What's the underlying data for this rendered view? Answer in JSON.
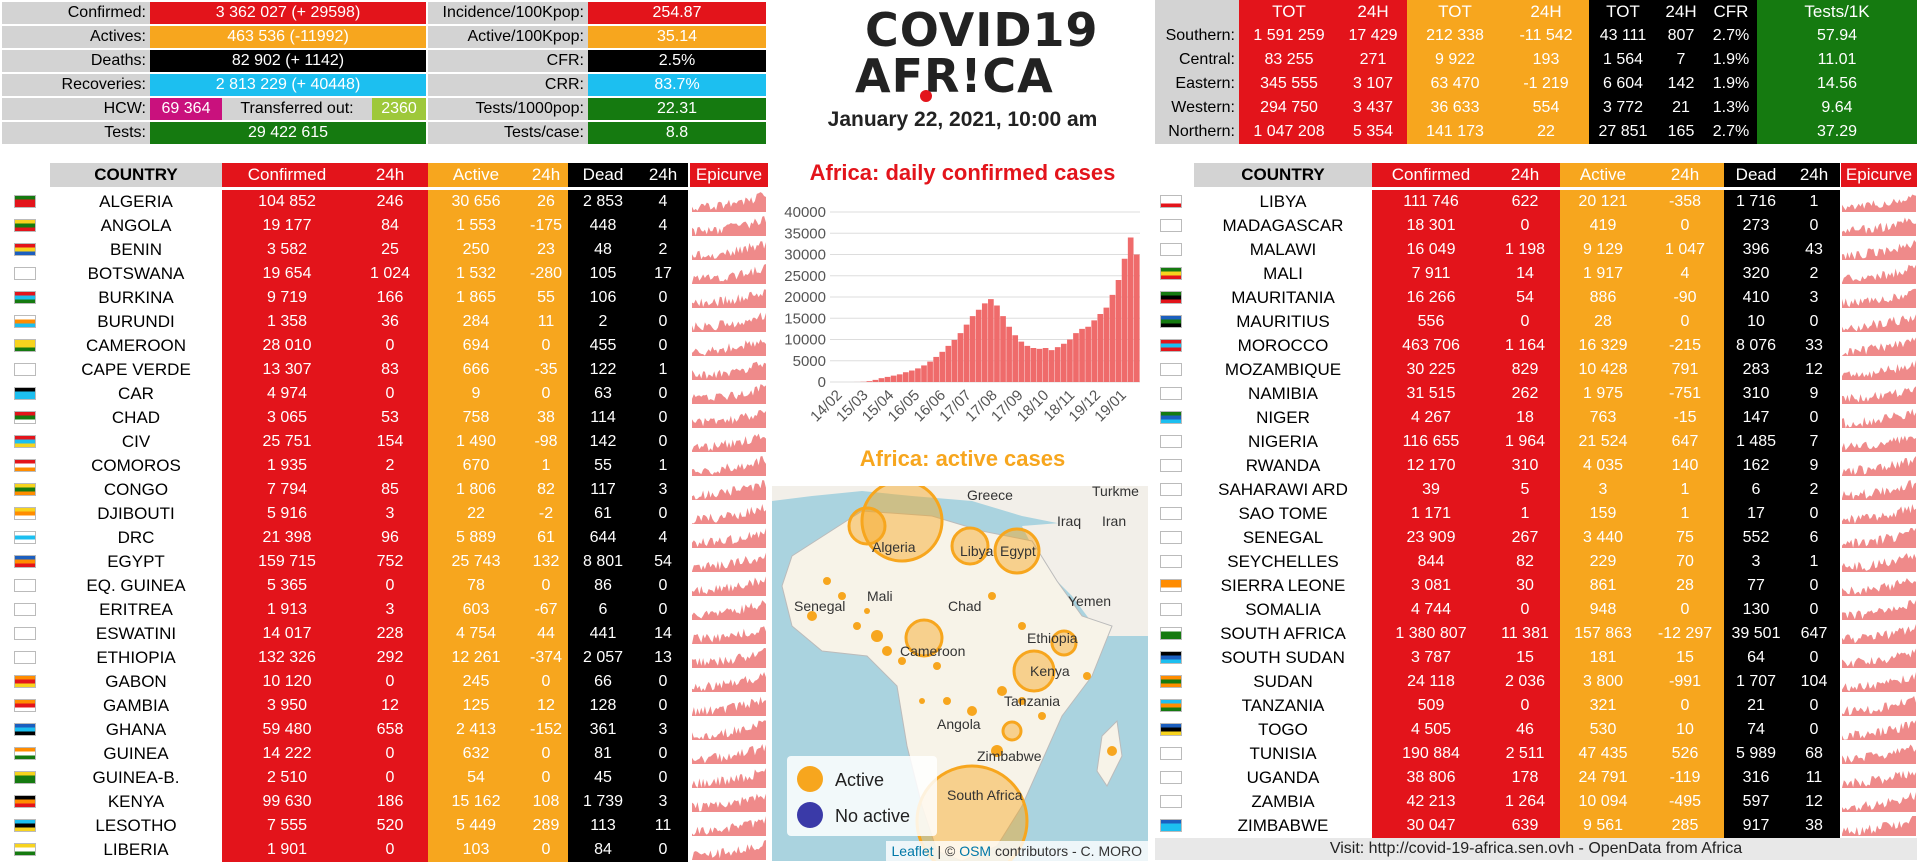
{
  "colors": {
    "confirmed": "#e3141b",
    "active": "#f7a61e",
    "dead": "#000000",
    "recovered": "#1cbff0",
    "tests": "#157a10",
    "hcw": "#c9117d",
    "transferred": "#9ec83a"
  },
  "summary_left": {
    "confirmed_label": "Confirmed:",
    "confirmed_value": "3 362 027 (+ 29598)",
    "actives_label": "Actives:",
    "actives_value": "463 536 (-11992)",
    "deaths_label": "Deaths:",
    "deaths_value": "82 902 (+ 1142)",
    "recoveries_label": "Recoveries:",
    "recoveries_value": "2 813 229 (+ 40448)",
    "hcw_label": "HCW:",
    "hcw_value": "69 364",
    "transferred_label": "Transferred out:",
    "transferred_value": "2360",
    "tests_label": "Tests:",
    "tests_value": "29 422 615"
  },
  "summary_mid": {
    "incidence_label": "Incidence/100Kpop:",
    "incidence_value": "254.87",
    "active_label": "Active/100Kpop:",
    "active_value": "35.14",
    "cfr_label": "CFR:",
    "cfr_value": "2.5%",
    "crr_label": "CRR:",
    "crr_value": "83.7%",
    "tests1000_label": "Tests/1000pop:",
    "tests1000_value": "22.31",
    "testscase_label": "Tests/case:",
    "testscase_value": "8.8"
  },
  "logo": {
    "line1": "COVID19",
    "line2": "AFR!CA"
  },
  "date": "January 22, 2021, 10:00 am",
  "regions": {
    "headers": [
      "TOT",
      "24H",
      "TOT",
      "24H",
      "TOT",
      "24H",
      "CFR",
      "Tests/1K"
    ],
    "rows": [
      {
        "name": "Southern:",
        "v": [
          "1 591 259",
          "17 429",
          "212 338",
          "-11 542",
          "43 111",
          "807",
          "2.7%",
          "57.94"
        ]
      },
      {
        "name": "Central:",
        "v": [
          "83 255",
          "271",
          "9 922",
          "193",
          "1 564",
          "7",
          "1.9%",
          "11.01"
        ]
      },
      {
        "name": "Eastern:",
        "v": [
          "345 555",
          "3 107",
          "63 470",
          "-1 219",
          "6 604",
          "142",
          "1.9%",
          "14.56"
        ]
      },
      {
        "name": "Western:",
        "v": [
          "294 750",
          "3 437",
          "36 633",
          "554",
          "3 772",
          "21",
          "1.3%",
          "9.64"
        ]
      },
      {
        "name": "Northern:",
        "v": [
          "1 047 208",
          "5 354",
          "141 173",
          "22",
          "27 851",
          "165",
          "2.7%",
          "37.29"
        ]
      }
    ]
  },
  "table_headers": {
    "country": "COUNTRY",
    "confirmed": "Confirmed",
    "c24": "24h",
    "active": "Active",
    "a24": "24h",
    "dead": "Dead",
    "d24": "24h",
    "epi": "Epicurve"
  },
  "left_countries": [
    {
      "name": "ALGERIA",
      "c": "104 852",
      "c24": "246",
      "a": "30 656",
      "a24": "26",
      "d": "2 853",
      "d24": "4"
    },
    {
      "name": "ANGOLA",
      "c": "19 177",
      "c24": "84",
      "a": "1 553",
      "a24": "-175",
      "d": "448",
      "d24": "4"
    },
    {
      "name": "BENIN",
      "c": "3 582",
      "c24": "25",
      "a": "250",
      "a24": "23",
      "d": "48",
      "d24": "2"
    },
    {
      "name": "BOTSWANA",
      "c": "19 654",
      "c24": "1 024",
      "a": "1 532",
      "a24": "-280",
      "d": "105",
      "d24": "17"
    },
    {
      "name": "BURKINA",
      "c": "9 719",
      "c24": "166",
      "a": "1 865",
      "a24": "55",
      "d": "106",
      "d24": "0"
    },
    {
      "name": "BURUNDI",
      "c": "1 358",
      "c24": "36",
      "a": "284",
      "a24": "11",
      "d": "2",
      "d24": "0"
    },
    {
      "name": "CAMEROON",
      "c": "28 010",
      "c24": "0",
      "a": "694",
      "a24": "0",
      "d": "455",
      "d24": "0"
    },
    {
      "name": "CAPE VERDE",
      "c": "13 307",
      "c24": "83",
      "a": "666",
      "a24": "-35",
      "d": "122",
      "d24": "1"
    },
    {
      "name": "CAR",
      "c": "4 974",
      "c24": "0",
      "a": "9",
      "a24": "0",
      "d": "63",
      "d24": "0"
    },
    {
      "name": "CHAD",
      "c": "3 065",
      "c24": "53",
      "a": "758",
      "a24": "38",
      "d": "114",
      "d24": "0"
    },
    {
      "name": "CIV",
      "c": "25 751",
      "c24": "154",
      "a": "1 490",
      "a24": "-98",
      "d": "142",
      "d24": "0"
    },
    {
      "name": "COMOROS",
      "c": "1 935",
      "c24": "2",
      "a": "670",
      "a24": "1",
      "d": "55",
      "d24": "1"
    },
    {
      "name": "CONGO",
      "c": "7 794",
      "c24": "85",
      "a": "1 806",
      "a24": "82",
      "d": "117",
      "d24": "3"
    },
    {
      "name": "DJIBOUTI",
      "c": "5 916",
      "c24": "3",
      "a": "22",
      "a24": "-2",
      "d": "61",
      "d24": "0"
    },
    {
      "name": "DRC",
      "c": "21 398",
      "c24": "96",
      "a": "5 889",
      "a24": "61",
      "d": "644",
      "d24": "4"
    },
    {
      "name": "EGYPT",
      "c": "159 715",
      "c24": "752",
      "a": "25 743",
      "a24": "132",
      "d": "8 801",
      "d24": "54"
    },
    {
      "name": "EQ. GUINEA",
      "c": "5 365",
      "c24": "0",
      "a": "78",
      "a24": "0",
      "d": "86",
      "d24": "0"
    },
    {
      "name": "ERITREA",
      "c": "1 913",
      "c24": "3",
      "a": "603",
      "a24": "-67",
      "d": "6",
      "d24": "0"
    },
    {
      "name": "ESWATINI",
      "c": "14 017",
      "c24": "228",
      "a": "4 754",
      "a24": "44",
      "d": "441",
      "d24": "14"
    },
    {
      "name": "ETHIOPIA",
      "c": "132 326",
      "c24": "292",
      "a": "12 261",
      "a24": "-374",
      "d": "2 057",
      "d24": "13"
    },
    {
      "name": "GABON",
      "c": "10 120",
      "c24": "0",
      "a": "245",
      "a24": "0",
      "d": "66",
      "d24": "0"
    },
    {
      "name": "GAMBIA",
      "c": "3 950",
      "c24": "12",
      "a": "125",
      "a24": "12",
      "d": "128",
      "d24": "0"
    },
    {
      "name": "GHANA",
      "c": "59 480",
      "c24": "658",
      "a": "2 413",
      "a24": "-152",
      "d": "361",
      "d24": "3"
    },
    {
      "name": "GUINEA",
      "c": "14 222",
      "c24": "0",
      "a": "632",
      "a24": "0",
      "d": "81",
      "d24": "0"
    },
    {
      "name": "GUINEA-B.",
      "c": "2 510",
      "c24": "0",
      "a": "54",
      "a24": "0",
      "d": "45",
      "d24": "0"
    },
    {
      "name": "KENYA",
      "c": "99 630",
      "c24": "186",
      "a": "15 162",
      "a24": "108",
      "d": "1 739",
      "d24": "3"
    },
    {
      "name": "LESOTHO",
      "c": "7 555",
      "c24": "520",
      "a": "5 449",
      "a24": "289",
      "d": "113",
      "d24": "11"
    },
    {
      "name": "LIBERIA",
      "c": "1 901",
      "c24": "0",
      "a": "103",
      "a24": "0",
      "d": "84",
      "d24": "0"
    }
  ],
  "right_countries": [
    {
      "name": "LIBYA",
      "c": "111 746",
      "c24": "622",
      "a": "20 121",
      "a24": "-358",
      "d": "1 716",
      "d24": "1"
    },
    {
      "name": "MADAGASCAR",
      "c": "18 301",
      "c24": "0",
      "a": "419",
      "a24": "0",
      "d": "273",
      "d24": "0"
    },
    {
      "name": "MALAWI",
      "c": "16 049",
      "c24": "1 198",
      "a": "9 129",
      "a24": "1 047",
      "d": "396",
      "d24": "43"
    },
    {
      "name": "MALI",
      "c": "7 911",
      "c24": "14",
      "a": "1 917",
      "a24": "4",
      "d": "320",
      "d24": "2"
    },
    {
      "name": "MAURITANIA",
      "c": "16 266",
      "c24": "54",
      "a": "886",
      "a24": "-90",
      "d": "410",
      "d24": "3"
    },
    {
      "name": "MAURITIUS",
      "c": "556",
      "c24": "0",
      "a": "28",
      "a24": "0",
      "d": "10",
      "d24": "0"
    },
    {
      "name": "MOROCCO",
      "c": "463 706",
      "c24": "1 164",
      "a": "16 329",
      "a24": "-215",
      "d": "8 076",
      "d24": "33"
    },
    {
      "name": "MOZAMBIQUE",
      "c": "30 225",
      "c24": "829",
      "a": "10 428",
      "a24": "791",
      "d": "283",
      "d24": "12"
    },
    {
      "name": "NAMIBIA",
      "c": "31 515",
      "c24": "262",
      "a": "1 975",
      "a24": "-751",
      "d": "310",
      "d24": "9"
    },
    {
      "name": "NIGER",
      "c": "4 267",
      "c24": "18",
      "a": "763",
      "a24": "-15",
      "d": "147",
      "d24": "0"
    },
    {
      "name": "NIGERIA",
      "c": "116 655",
      "c24": "1 964",
      "a": "21 524",
      "a24": "647",
      "d": "1 485",
      "d24": "7"
    },
    {
      "name": "RWANDA",
      "c": "12 170",
      "c24": "310",
      "a": "4 035",
      "a24": "140",
      "d": "162",
      "d24": "9"
    },
    {
      "name": "SAHARAWI ARD",
      "c": "39",
      "c24": "5",
      "a": "3",
      "a24": "1",
      "d": "6",
      "d24": "2"
    },
    {
      "name": "SAO TOME",
      "c": "1 171",
      "c24": "1",
      "a": "159",
      "a24": "1",
      "d": "17",
      "d24": "0"
    },
    {
      "name": "SENEGAL",
      "c": "23 909",
      "c24": "267",
      "a": "3 440",
      "a24": "75",
      "d": "552",
      "d24": "6"
    },
    {
      "name": "SEYCHELLES",
      "c": "844",
      "c24": "82",
      "a": "229",
      "a24": "70",
      "d": "3",
      "d24": "1"
    },
    {
      "name": "SIERRA LEONE",
      "c": "3 081",
      "c24": "30",
      "a": "861",
      "a24": "28",
      "d": "77",
      "d24": "0"
    },
    {
      "name": "SOMALIA",
      "c": "4 744",
      "c24": "0",
      "a": "948",
      "a24": "0",
      "d": "130",
      "d24": "0"
    },
    {
      "name": "SOUTH AFRICA",
      "c": "1 380 807",
      "c24": "11 381",
      "a": "157 863",
      "a24": "-12 297",
      "d": "39 501",
      "d24": "647"
    },
    {
      "name": "SOUTH SUDAN",
      "c": "3 787",
      "c24": "15",
      "a": "181",
      "a24": "15",
      "d": "64",
      "d24": "0"
    },
    {
      "name": "SUDAN",
      "c": "24 118",
      "c24": "2 036",
      "a": "3 800",
      "a24": "-991",
      "d": "1 707",
      "d24": "104"
    },
    {
      "name": "TANZANIA",
      "c": "509",
      "c24": "0",
      "a": "321",
      "a24": "0",
      "d": "21",
      "d24": "0"
    },
    {
      "name": "TOGO",
      "c": "4 505",
      "c24": "46",
      "a": "530",
      "a24": "10",
      "d": "74",
      "d24": "0"
    },
    {
      "name": "TUNISIA",
      "c": "190 884",
      "c24": "2 511",
      "a": "47 435",
      "a24": "526",
      "d": "5 989",
      "d24": "68"
    },
    {
      "name": "UGANDA",
      "c": "38 806",
      "c24": "178",
      "a": "24 791",
      "a24": "-119",
      "d": "316",
      "d24": "11"
    },
    {
      "name": "ZAMBIA",
      "c": "42 213",
      "c24": "1 264",
      "a": "10 094",
      "a24": "-495",
      "d": "597",
      "d24": "12"
    },
    {
      "name": "ZIMBABWE",
      "c": "30 047",
      "c24": "639",
      "a": "9 561",
      "a24": "285",
      "d": "917",
      "d24": "38"
    }
  ],
  "chart_title": "Africa: daily confirmed cases",
  "chart_data": {
    "type": "bar",
    "title": "Africa: daily confirmed cases",
    "x_ticks": [
      "14/02",
      "15/03",
      "15/04",
      "16/05",
      "16/06",
      "17/07",
      "17/08",
      "17/09",
      "18/10",
      "18/11",
      "19/12",
      "19/01"
    ],
    "y_ticks": [
      0,
      5000,
      10000,
      15000,
      20000,
      25000,
      30000,
      35000,
      40000
    ],
    "ylim": [
      0,
      40000
    ],
    "weekly_values": [
      0,
      0,
      0,
      0,
      10,
      50,
      200,
      500,
      900,
      1200,
      1500,
      1800,
      2300,
      2700,
      3200,
      3900,
      4800,
      5900,
      7100,
      8500,
      9900,
      11500,
      13500,
      15500,
      17000,
      18500,
      19500,
      18000,
      15500,
      13000,
      11000,
      9500,
      8500,
      8000,
      7800,
      8000,
      7500,
      8200,
      9000,
      10000,
      11500,
      12500,
      13000,
      14500,
      16000,
      17500,
      20500,
      24000,
      29000,
      34000,
      30000
    ]
  },
  "map_title": "Africa: active cases",
  "map": {
    "labels": [
      "Algeria",
      "Libya",
      "Egypt",
      "Mali",
      "Chad",
      "Senegal",
      "Yemen",
      "Ethiopia",
      "Cameroon",
      "Kenya",
      "Tanzania",
      "Angola",
      "Zimbabwe",
      "South Africa",
      "Iraq",
      "Iran",
      "Greece",
      "Turkme"
    ],
    "legend_active": "Active",
    "legend_noactive": "No active",
    "attribution_leaflet": "Leaflet",
    "attribution_sep": " | © ",
    "attribution_osm": "OSM",
    "attribution_rest": " contributors - C. MORO"
  },
  "footer": "Visit: http://covid-19-africa.sen.ovh - OpenData from Africa"
}
